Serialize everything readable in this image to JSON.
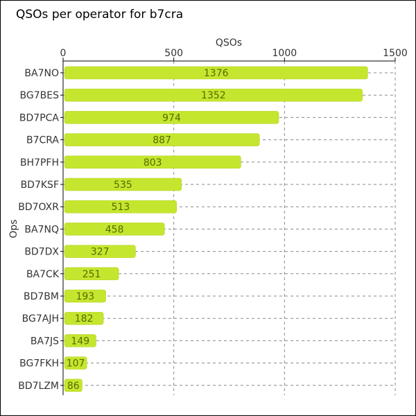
{
  "chart_data": {
    "type": "bar",
    "orientation": "horizontal",
    "title": "QSOs per operator for b7cra",
    "xlabel": "QSOs",
    "ylabel": "Ops",
    "xaxis_position": "top",
    "xlim": [
      0,
      1500
    ],
    "xticks": [
      0,
      500,
      1000,
      1500
    ],
    "grid": "vertical dashed",
    "categories": [
      "BA7NO",
      "BG7BES",
      "BD7PCA",
      "B7CRA",
      "BH7PFH",
      "BD7KSF",
      "BD7OXR",
      "BA7NQ",
      "BD7DX",
      "BA7CK",
      "BD7BM",
      "BG7AJH",
      "BA7JS",
      "BG7FKH",
      "BD7LZM"
    ],
    "values": [
      1376,
      1352,
      974,
      887,
      803,
      535,
      513,
      458,
      327,
      251,
      193,
      182,
      149,
      107,
      86
    ],
    "bar_color": "#c5e62e"
  }
}
